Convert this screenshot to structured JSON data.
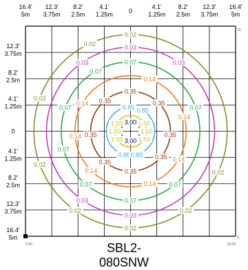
{
  "title": "SBL2-080SNW",
  "axis_labels_top": [
    {
      "ft": "16.4'",
      "m": "5m"
    },
    {
      "ft": "12.3'",
      "m": "3.75m"
    },
    {
      "ft": "8.2'",
      "m": "2.5m"
    },
    {
      "ft": "4.1'",
      "m": "1.25m"
    },
    {
      "ft": "0",
      "m": ""
    },
    {
      "ft": "4.1'",
      "m": "1.25m"
    },
    {
      "ft": "8.2'",
      "m": "2.5m"
    },
    {
      "ft": "12.3'",
      "m": "3.75m"
    },
    {
      "ft": "16.4'",
      "m": "5m"
    }
  ],
  "axis_labels_left": [
    {
      "ft": "12.3'",
      "m": "3.75m"
    },
    {
      "ft": "8.2'",
      "m": "2.5m"
    },
    {
      "ft": "4.1'",
      "m": "1.25m"
    },
    {
      "ft": "0",
      "m": ""
    },
    {
      "ft": "4.1'",
      "m": "1.25m"
    },
    {
      "ft": "8.2'",
      "m": "2.5m"
    },
    {
      "ft": "12.3'",
      "m": "3.75m"
    },
    {
      "ft": "16.4'",
      "m": "5m"
    }
  ],
  "corner_labels": {
    "bottom_left": "0.00",
    "bottom_right": "10.00",
    "right_top": "10",
    "right_bottom": "0."
  },
  "colors": {
    "0.02": "#8b8b2a",
    "0.03": "#c03cc0",
    "0.07": "#2aa84a",
    "0.14": "#f07d1a",
    "0.35": "#8b3a10",
    "0.85": "#3ab0e0",
    "1.50": "#d6c41a",
    "3.00": "#000050"
  },
  "contours": [
    {
      "level": "0.02",
      "radius_m": 4.6,
      "labels": [
        {
          "angle": 90,
          "text": "0.02"
        },
        {
          "angle": 115,
          "text": "0.02"
        },
        {
          "angle": 160,
          "text": "0.02"
        },
        {
          "angle": 200,
          "text": "0.02"
        },
        {
          "angle": 235,
          "text": "0.02"
        },
        {
          "angle": 270,
          "text": "0.02"
        },
        {
          "angle": 305,
          "text": "0.02"
        },
        {
          "angle": 335,
          "text": "0.02"
        }
      ]
    },
    {
      "level": "0.03",
      "radius_m": 4.0,
      "labels": [
        {
          "angle": 90,
          "text": "0.03"
        },
        {
          "angle": 125,
          "text": "0.03"
        },
        {
          "angle": 55,
          "text": "0.03"
        },
        {
          "angle": 235,
          "text": "0.03"
        },
        {
          "angle": 270,
          "text": "0.03"
        }
      ]
    },
    {
      "level": "0.07",
      "radius_m": 3.3,
      "labels": [
        {
          "angle": 90,
          "text": "0.07"
        },
        {
          "angle": 120,
          "text": "0.07"
        },
        {
          "angle": 160,
          "text": "0.07"
        },
        {
          "angle": 195,
          "text": "0.07"
        },
        {
          "angle": 230,
          "text": "0.07"
        },
        {
          "angle": 270,
          "text": "0.07"
        },
        {
          "angle": 310,
          "text": "0.07"
        },
        {
          "angle": 20,
          "text": "0.07"
        }
      ]
    },
    {
      "level": "0.14",
      "radius_m": 2.65,
      "labels": [
        {
          "angle": 70,
          "text": "0.14"
        },
        {
          "angle": 150,
          "text": "0.14"
        },
        {
          "angle": 185,
          "text": "0.14"
        },
        {
          "angle": 225,
          "text": "0.14"
        },
        {
          "angle": 290,
          "text": "0.14"
        },
        {
          "angle": 330,
          "text": "0.14"
        },
        {
          "angle": 15,
          "text": "0.14"
        }
      ]
    },
    {
      "level": "0.35",
      "radius_m": 1.9,
      "labels": [
        {
          "angle": 90,
          "text": "0.35"
        },
        {
          "angle": 130,
          "text": "0.35"
        },
        {
          "angle": 185,
          "text": "0.35"
        },
        {
          "angle": 230,
          "text": "0.35"
        },
        {
          "angle": 270,
          "text": "0.35"
        },
        {
          "angle": 320,
          "text": "0.35"
        },
        {
          "angle": 355,
          "text": "0.35"
        },
        {
          "angle": 45,
          "text": "0.35"
        }
      ]
    },
    {
      "level": "0.85",
      "radius_m": 1.15,
      "labels": [
        {
          "angle": 60,
          "text": "0.85"
        },
        {
          "angle": 95,
          "text": "0.85"
        },
        {
          "angle": 255,
          "text": "0.85"
        },
        {
          "angle": 285,
          "text": "0.85"
        }
      ]
    },
    {
      "level": "1.50",
      "radius_m": 0.75,
      "labels": [
        {
          "angle": 150,
          "text": "1.50"
        },
        {
          "angle": 180,
          "text": "1.50"
        },
        {
          "angle": 210,
          "text": "1.50"
        },
        {
          "angle": 330,
          "text": "1.50"
        },
        {
          "angle": 0,
          "text": "1.50"
        },
        {
          "angle": 30,
          "text": "1.50"
        }
      ]
    },
    {
      "level": "3.00",
      "radius_m": 0.45,
      "labels": [
        {
          "angle": 90,
          "text": "3.00"
        },
        {
          "angle": 270,
          "text": "3.00"
        }
      ]
    }
  ]
}
